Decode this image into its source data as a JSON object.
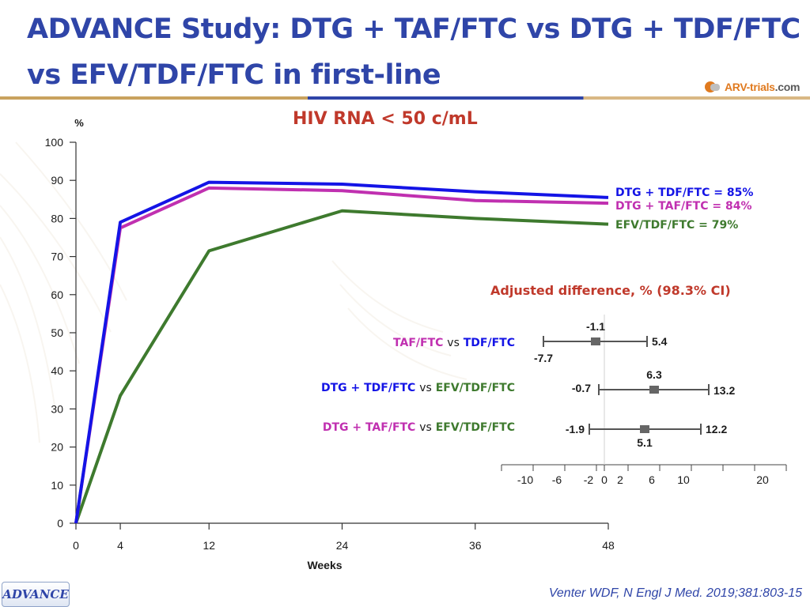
{
  "header": {
    "title_line1": "ADVANCE Study: DTG + TAF/FTC vs DTG + TDF/FTC",
    "title_line2": "vs EFV/TDF/FTC in first-line",
    "logo_main": "ARV-trials",
    "logo_suffix": ".com"
  },
  "colors": {
    "dtg_tdf": "#1414e6",
    "dtg_taf": "#c030b0",
    "efv": "#3e7a2e",
    "title": "#2f45a8",
    "accent_red": "#c0392b"
  },
  "chart_data": [
    {
      "type": "line",
      "title": "HIV RNA < 50 c/mL",
      "xlabel": "Weeks",
      "ylabel": "%",
      "xlim": [
        0,
        48
      ],
      "ylim": [
        0,
        100
      ],
      "x_ticks": [
        0,
        4,
        12,
        24,
        36,
        48
      ],
      "y_ticks": [
        0,
        10,
        20,
        30,
        40,
        50,
        60,
        70,
        80,
        90,
        100
      ],
      "x": [
        0,
        4,
        12,
        24,
        36,
        48
      ],
      "series": [
        {
          "name": "DTG + TDF/FTC",
          "color": "#1414e6",
          "values": [
            0,
            79,
            89.5,
            89,
            87,
            85.5
          ],
          "label": "DTG + TDF/FTC = 85%"
        },
        {
          "name": "DTG + TAF/FTC",
          "color": "#c030b0",
          "values": [
            0,
            77.5,
            88,
            87.3,
            84.7,
            84
          ],
          "label": "DTG + TAF/FTC = 84%"
        },
        {
          "name": "EFV/TDF/FTC",
          "color": "#3e7a2e",
          "values": [
            0,
            33.5,
            71.5,
            82,
            80,
            78.5
          ],
          "label": "EFV/TDF/FTC = 79%"
        }
      ]
    },
    {
      "type": "forest",
      "title": "Adjusted difference, % (98.3% CI)",
      "xlim": [
        -13,
        23
      ],
      "x_ticks": [
        -10,
        -6,
        -2,
        0,
        2,
        6,
        10,
        20
      ],
      "rows": [
        {
          "label_a": "TAF/FTC",
          "label_b": "TDF/FTC",
          "color_a": "#c030b0",
          "color_b": "#1414e6",
          "estimate": -1.1,
          "lower": -7.7,
          "upper": 5.4
        },
        {
          "label_a": "DTG + TDF/FTC",
          "label_b": "EFV/TDF/FTC",
          "color_a": "#1414e6",
          "color_b": "#3e7a2e",
          "estimate": 6.3,
          "lower": -0.7,
          "upper": 13.2
        },
        {
          "label_a": "DTG + TAF/FTC",
          "label_b": "EFV/TDF/FTC",
          "color_a": "#c030b0",
          "color_b": "#3e7a2e",
          "estimate": 5.1,
          "lower": -1.9,
          "upper": 12.2
        }
      ]
    }
  ],
  "labels": {
    "vs": "vs",
    "estimate_1": "-1.1",
    "lower_1": "-7.7",
    "upper_1": "5.4",
    "estimate_2": "6.3",
    "lower_2": "-0.7",
    "upper_2": "13.2",
    "estimate_3": "5.1",
    "lower_3": "-1.9",
    "upper_3": "12.2"
  },
  "footer": {
    "tag": "ADVANCE",
    "citation": "Venter WDF, N Engl J Med. 2019;381:803-15"
  }
}
